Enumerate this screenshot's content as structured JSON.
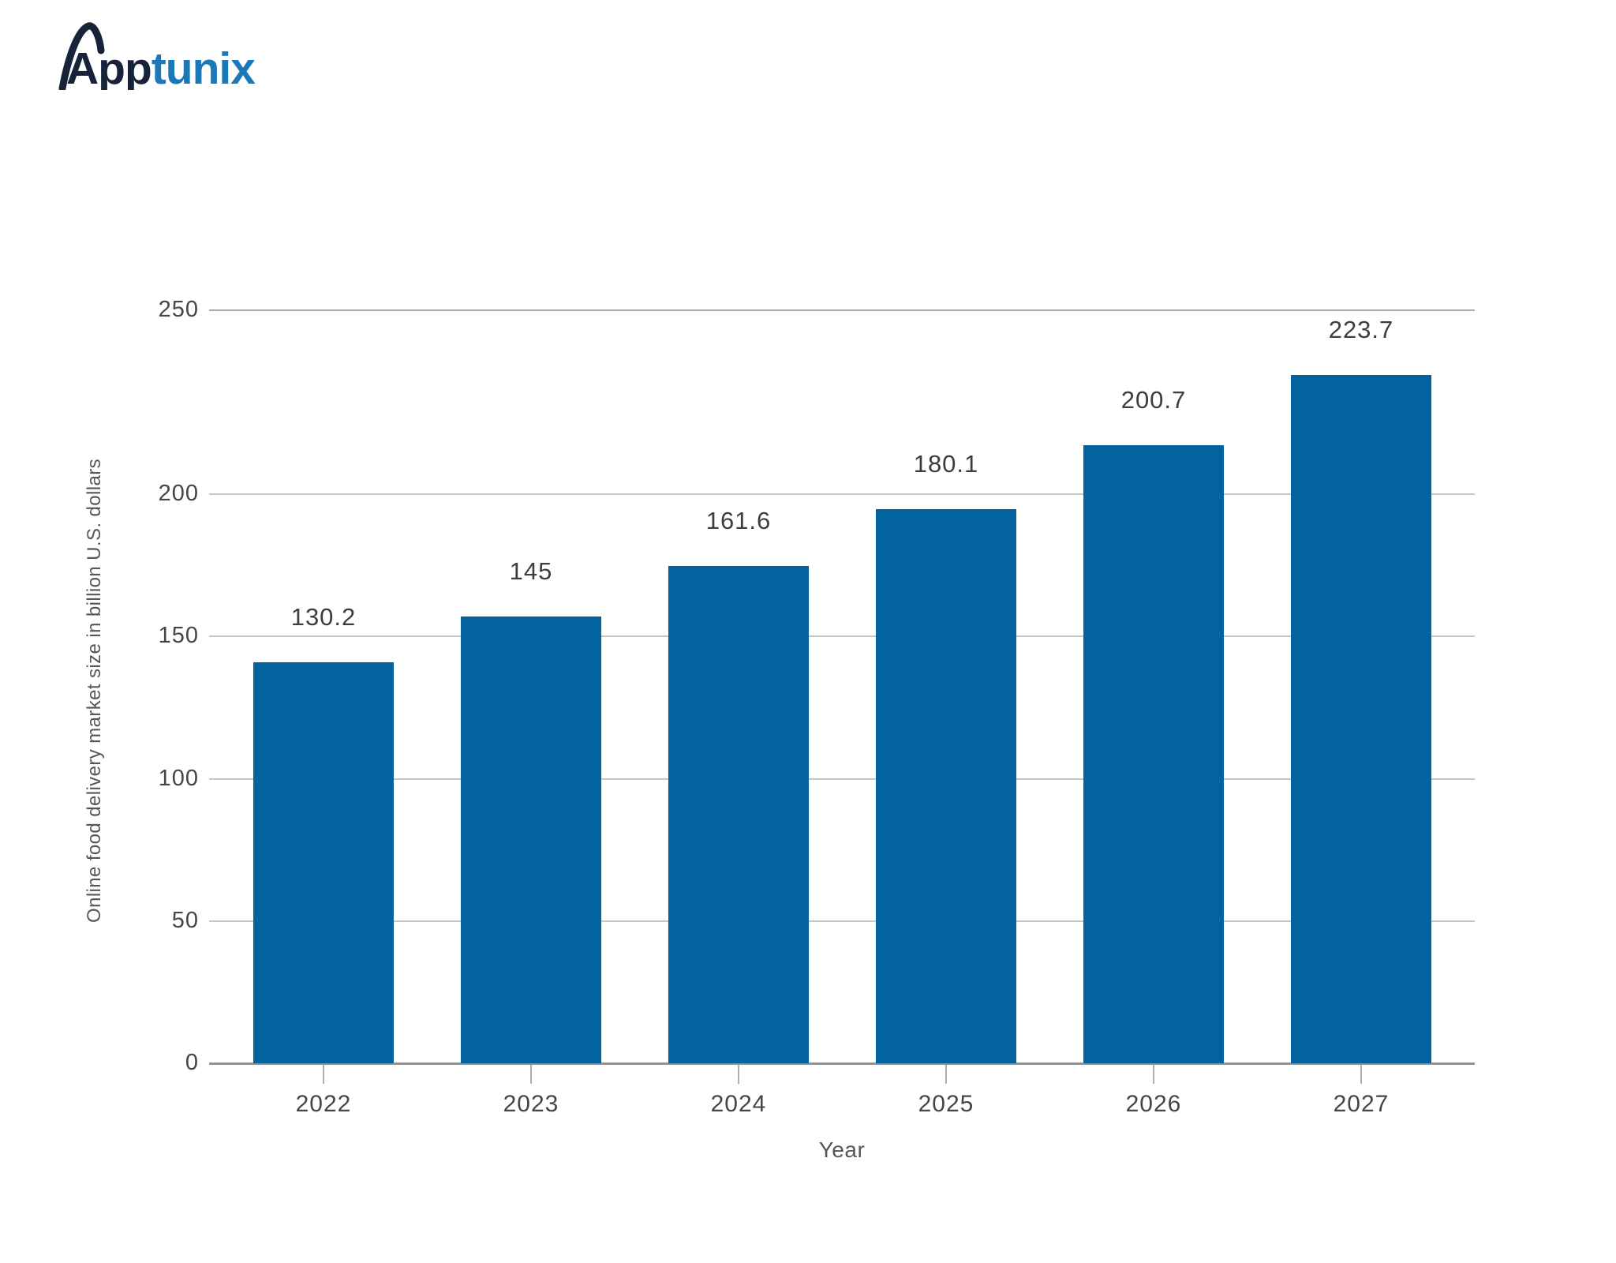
{
  "logo": {
    "brand_dark": "App",
    "brand_blue": "tunix",
    "dark_color": "#18233a",
    "blue_color": "#1b79b8"
  },
  "chart_data": {
    "type": "bar",
    "title": "",
    "categories": [
      "2022",
      "2023",
      "2024",
      "2025",
      "2026",
      "2027"
    ],
    "values": [
      130.2,
      145,
      161.6,
      180.1,
      200.7,
      223.7
    ],
    "value_labels": [
      "130.2",
      "145",
      "161.6",
      "180.1",
      "200.7",
      "223.7"
    ],
    "xlabel": "Year",
    "ylabel": "Online food delivery market size in billion U.S. dollars",
    "yticks": [
      0,
      50,
      100,
      150,
      200,
      250
    ],
    "ytick_labels": [
      "0",
      "50",
      "100",
      "150",
      "200",
      "250"
    ],
    "ylim": [
      0,
      250
    ],
    "grid": true,
    "legend_position": "none",
    "bar_color": "#02639f",
    "gridline_color": "#c6c6c6",
    "axisline_color": "#929292",
    "label_color": "#3d3d3d",
    "tick_color": "#454545"
  }
}
